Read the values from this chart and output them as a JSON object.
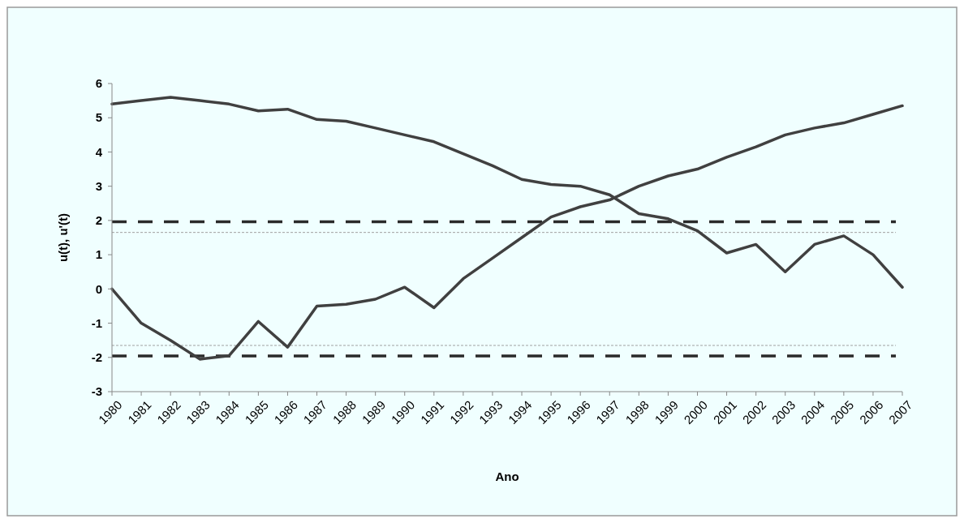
{
  "chart_data": {
    "type": "line",
    "xlabel": "Ano",
    "ylabel": "u(t), u'(t)",
    "categories": [
      "1980",
      "1981",
      "1982",
      "1983",
      "1984",
      "1985",
      "1986",
      "1987",
      "1988",
      "1989",
      "1990",
      "1991",
      "1992",
      "1993",
      "1994",
      "1995",
      "1996",
      "1997",
      "1998",
      "1999",
      "2000",
      "2001",
      "2002",
      "2003",
      "2004",
      "2005",
      "2006",
      "2007"
    ],
    "series": [
      {
        "color": "#404040",
        "values": [
          0.0,
          -1.0,
          -1.5,
          -2.05,
          -1.95,
          -0.95,
          -1.7,
          -0.5,
          -0.45,
          -0.3,
          0.05,
          -0.55,
          0.3,
          0.9,
          1.5,
          2.1,
          2.4,
          2.6,
          3.0,
          3.3,
          3.5,
          3.85,
          4.15,
          4.5,
          4.7,
          4.85,
          5.1,
          5.35
        ]
      },
      {
        "color": "#404040",
        "values": [
          5.4,
          5.5,
          5.6,
          5.5,
          5.4,
          5.2,
          5.25,
          4.95,
          4.9,
          4.7,
          4.5,
          4.3,
          3.95,
          3.6,
          3.2,
          3.05,
          3.0,
          2.75,
          2.2,
          2.05,
          1.7,
          1.05,
          1.3,
          0.5,
          1.3,
          1.55,
          1.0,
          0.05
        ]
      }
    ],
    "ylim": [
      -3,
      6
    ],
    "yticks": [
      -3,
      -2,
      -1,
      0,
      1,
      2,
      3,
      4,
      5,
      6
    ],
    "ref_lines": [
      {
        "axis": "y",
        "value": 1.96,
        "color": "#2a2a2a",
        "line_style": "dashed"
      },
      {
        "axis": "y",
        "value": -1.96,
        "color": "#2a2a2a",
        "line_style": "dashed"
      },
      {
        "axis": "y",
        "value": 1.65,
        "color": "#a0a0a0",
        "line_style": "dotted"
      },
      {
        "axis": "y",
        "value": -1.65,
        "color": "#a0a0a0",
        "line_style": "dotted"
      }
    ],
    "grid": false,
    "marker": "none",
    "line_style": "solid"
  }
}
